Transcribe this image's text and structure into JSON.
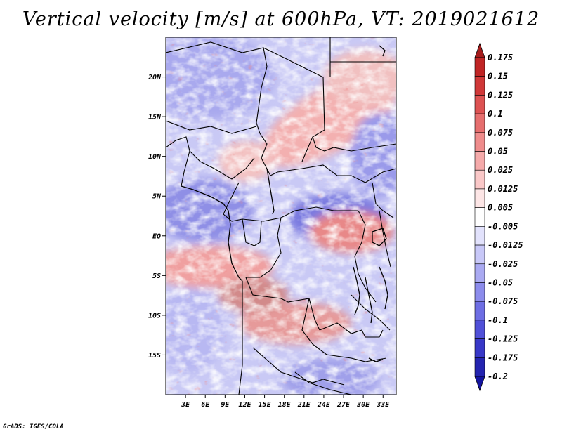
{
  "title": "Vertical velocity [m/s] at 600hPa, VT: 2019021612",
  "credit": "GrADS: IGES/COLA",
  "map": {
    "lat_labels": [
      "20N",
      "15N",
      "10N",
      "5N",
      "EQ",
      "5S",
      "10S",
      "15S"
    ],
    "lat_values": [
      20,
      15,
      10,
      5,
      0,
      -5,
      -10,
      -15
    ],
    "lon_labels": [
      "3E",
      "6E",
      "9E",
      "12E",
      "15E",
      "18E",
      "21E",
      "24E",
      "27E",
      "30E",
      "33E"
    ],
    "lon_values": [
      3,
      6,
      9,
      12,
      15,
      18,
      21,
      24,
      27,
      30,
      33
    ],
    "lon_range": [
      0,
      35
    ],
    "lat_range": [
      -20,
      25
    ]
  },
  "colorbar": {
    "labels": [
      "0.175",
      "0.15",
      "0.125",
      "0.1",
      "0.075",
      "0.05",
      "0.025",
      "0.0125",
      "0.005",
      "-0.005",
      "-0.0125",
      "-0.025",
      "-0.05",
      "-0.075",
      "-0.1",
      "-0.125",
      "-0.175",
      "-0.2"
    ],
    "colors": [
      "#a51c1c",
      "#c02525",
      "#d03838",
      "#dd5252",
      "#e66e6e",
      "#ef8c8c",
      "#f5aaaa",
      "#fac8c8",
      "#fde6e6",
      "#ffffff",
      "#e2e2fc",
      "#c8c8f8",
      "#aaaaf2",
      "#8c8cec",
      "#6e6ee4",
      "#5050d8",
      "#3838c8",
      "#2424b0",
      "#1414a0"
    ]
  }
}
